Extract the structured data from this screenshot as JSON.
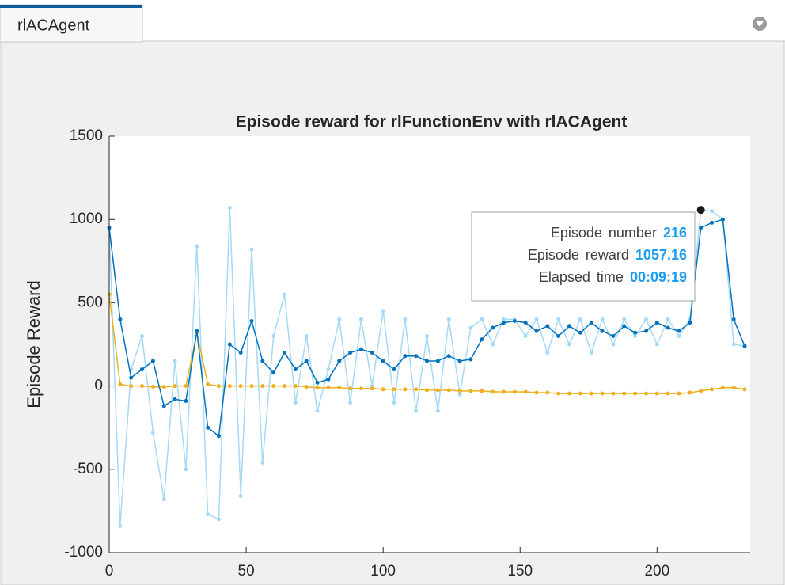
{
  "tab": {
    "label": "rlACAgent"
  },
  "chart_data": {
    "type": "line",
    "title": "Episode reward for rlFunctionEnv with rlACAgent",
    "ylabel": "Episode Reward",
    "x": [
      0,
      4,
      8,
      12,
      16,
      20,
      24,
      28,
      32,
      36,
      40,
      44,
      48,
      52,
      56,
      60,
      64,
      68,
      72,
      76,
      80,
      84,
      88,
      92,
      96,
      100,
      104,
      108,
      112,
      116,
      120,
      124,
      128,
      132,
      136,
      140,
      144,
      148,
      152,
      156,
      160,
      164,
      168,
      172,
      176,
      180,
      184,
      188,
      192,
      196,
      200,
      204,
      208,
      212,
      216,
      220,
      224,
      228,
      232
    ],
    "series": [
      {
        "color": "#a6d8f7",
        "values": [
          940,
          -840,
          100,
          300,
          -280,
          -680,
          150,
          -500,
          840,
          -770,
          -800,
          1070,
          -660,
          820,
          -460,
          300,
          550,
          -100,
          300,
          -150,
          100,
          400,
          -100,
          400,
          0,
          450,
          -100,
          400,
          -150,
          300,
          -150,
          400,
          -50,
          350,
          400,
          250,
          400,
          400,
          300,
          400,
          200,
          400,
          250,
          400,
          200,
          400,
          250,
          400,
          300,
          400,
          250,
          400,
          300,
          400,
          1057.16,
          1050,
          1000,
          250,
          240
        ]
      },
      {
        "color": "#edb120",
        "values": [
          550,
          10,
          0,
          0,
          -5,
          -5,
          0,
          0,
          320,
          10,
          0,
          0,
          0,
          0,
          0,
          0,
          0,
          0,
          -5,
          -10,
          -10,
          -10,
          -15,
          -15,
          -15,
          -20,
          -20,
          -20,
          -20,
          -25,
          -25,
          -25,
          -30,
          -30,
          -30,
          -35,
          -35,
          -35,
          -35,
          -40,
          -40,
          -45,
          -45,
          -45,
          -45,
          -45,
          -45,
          -45,
          -45,
          -45,
          -45,
          -45,
          -45,
          -40,
          -30,
          -20,
          -10,
          -10,
          -20
        ]
      },
      {
        "color": "#0072bd",
        "values": [
          950,
          400,
          50,
          100,
          150,
          -120,
          -80,
          -90,
          330,
          -250,
          -300,
          250,
          200,
          390,
          150,
          80,
          200,
          100,
          150,
          20,
          40,
          150,
          200,
          220,
          200,
          150,
          100,
          180,
          180,
          150,
          150,
          180,
          150,
          160,
          280,
          350,
          380,
          390,
          380,
          330,
          360,
          300,
          360,
          320,
          380,
          330,
          300,
          360,
          320,
          330,
          380,
          350,
          330,
          380,
          950,
          980,
          1000,
          400,
          240
        ]
      }
    ],
    "xlim": [
      0,
      234
    ],
    "xticks": [
      0,
      50,
      100,
      150,
      200
    ],
    "ylim": [
      -1000,
      1500
    ],
    "yticks": [
      -1000,
      -500,
      0,
      500,
      1000,
      1500
    ],
    "tooltip": {
      "rows": [
        {
          "label": "Episode number",
          "value": "216"
        },
        {
          "label": "Episode reward",
          "value": "1057.16"
        },
        {
          "label": "Elapsed time",
          "value": "00:09:19"
        }
      ]
    }
  }
}
